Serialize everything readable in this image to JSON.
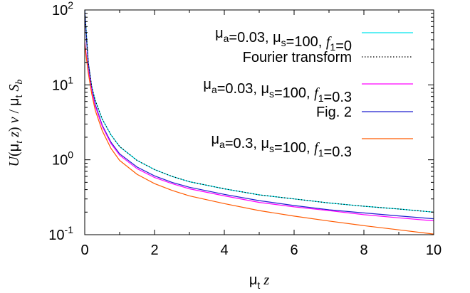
{
  "chart_data": {
    "type": "line",
    "xlabel": "μt z",
    "ylabel": "U(μt z) ν / μt Sb",
    "xlim": [
      0,
      10
    ],
    "ylim": [
      0.1,
      100
    ],
    "yscale": "log",
    "grid": false,
    "legend_position": "top-right",
    "x_ticks": [
      "0",
      "2",
      "4",
      "6",
      "8",
      "10"
    ],
    "y_ticks": [
      {
        "base": "10",
        "exp": "2",
        "value": 100
      },
      {
        "base": "10",
        "exp": "1",
        "value": 10
      },
      {
        "base": "10",
        "exp": "0",
        "value": 1
      },
      {
        "base": "10",
        "exp": "-1",
        "value": 0.1
      }
    ],
    "series": [
      {
        "name": "μa=0.03, μs=100, f1=0",
        "color": "#00e5ee",
        "dash": "solid",
        "x": [
          0,
          0.05,
          0.1,
          0.2,
          0.3,
          0.5,
          0.75,
          1,
          1.5,
          2,
          2.5,
          3,
          4,
          5,
          6,
          7,
          8,
          9,
          10
        ],
        "y": [
          100,
          46,
          20,
          9.5,
          6.2,
          3.5,
          2.15,
          1.5,
          0.98,
          0.74,
          0.6,
          0.51,
          0.41,
          0.34,
          0.3,
          0.265,
          0.24,
          0.22,
          0.2
        ]
      },
      {
        "name": "Fourier transform",
        "color": "#000000",
        "dash": "dotted",
        "x": [
          0,
          0.05,
          0.1,
          0.2,
          0.3,
          0.5,
          0.75,
          1,
          1.5,
          2,
          2.5,
          3,
          4,
          5,
          6,
          7,
          8,
          9,
          10
        ],
        "y": [
          100,
          45,
          20,
          9.5,
          6.2,
          3.5,
          2.15,
          1.5,
          0.98,
          0.74,
          0.6,
          0.51,
          0.41,
          0.34,
          0.3,
          0.265,
          0.24,
          0.22,
          0.2
        ]
      },
      {
        "name": "μa=0.03, μs=100, f1=0.3",
        "color": "#ff00ff",
        "dash": "solid",
        "x": [
          0,
          0.05,
          0.1,
          0.2,
          0.3,
          0.5,
          0.75,
          1,
          1.5,
          2,
          2.5,
          3,
          4,
          5,
          6,
          7,
          8,
          9,
          10
        ],
        "y": [
          38,
          24,
          16,
          8.5,
          5.2,
          2.8,
          1.65,
          1.15,
          0.76,
          0.58,
          0.48,
          0.41,
          0.33,
          0.27,
          0.235,
          0.21,
          0.185,
          0.168,
          0.153
        ]
      },
      {
        "name": "Fig. 2",
        "color": "#1f1fcf",
        "dash": "solid",
        "x": [
          0,
          0.05,
          0.1,
          0.2,
          0.3,
          0.5,
          0.75,
          1,
          1.5,
          2,
          2.5,
          3,
          4,
          5,
          6,
          7,
          8,
          9,
          10
        ],
        "y": [
          100,
          40,
          20,
          9.0,
          5.5,
          2.9,
          1.72,
          1.2,
          0.8,
          0.61,
          0.5,
          0.43,
          0.345,
          0.285,
          0.245,
          0.215,
          0.195,
          0.178,
          0.163
        ]
      },
      {
        "name": "μa=0.3, μs=100, f1=0.3",
        "color": "#ff5a00",
        "dash": "solid",
        "x": [
          0,
          0.05,
          0.1,
          0.2,
          0.3,
          0.5,
          0.75,
          1,
          1.5,
          2,
          2.5,
          3,
          4,
          5,
          6,
          7,
          8,
          9,
          10
        ],
        "y": [
          35,
          22,
          14.5,
          7.6,
          4.6,
          2.45,
          1.42,
          0.98,
          0.64,
          0.48,
          0.39,
          0.33,
          0.26,
          0.21,
          0.177,
          0.152,
          0.132,
          0.116,
          0.102
        ]
      }
    ]
  }
}
